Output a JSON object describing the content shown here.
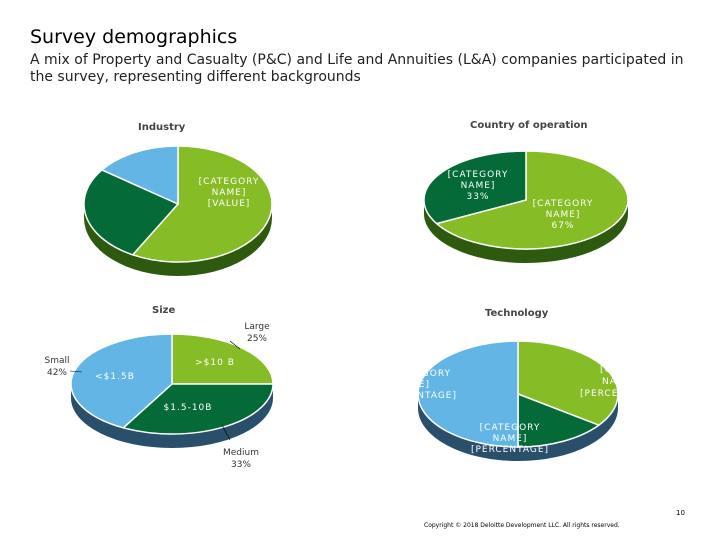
{
  "page": {
    "title": "Survey demographics",
    "subtitle": "A mix of Property and Casualty (P&C) and Life and Annuities (L&A) companies participated in the survey, representing different backgrounds",
    "page_number": "10",
    "copyright": "Copyright © 2018 Deloitte Development LLC. All rights reserved."
  },
  "chart_data": [
    {
      "type": "pie",
      "title": "Industry",
      "categories": [
        "[CATEGORY NAME] [VALUE]",
        "",
        ""
      ],
      "values": [
        58,
        27,
        15
      ],
      "colors": [
        "#86bc25",
        "#046a38",
        "#62b5e5"
      ],
      "labels": [
        "[CATEGORY",
        "NAME]",
        "[VALUE]"
      ]
    },
    {
      "type": "pie",
      "title": "Country of operation",
      "categories": [
        "[CATEGORY NAME]",
        "[CATEGORY NAME]"
      ],
      "values": [
        67,
        33
      ],
      "colors": [
        "#86bc25",
        "#046a38"
      ],
      "labels_a": [
        "[CATEGORY",
        "NAME]",
        "67%"
      ],
      "labels_b": [
        "[CATEGORY",
        "NAME]",
        "33%"
      ]
    },
    {
      "type": "pie",
      "title": "Size",
      "categories": [
        ">$10 B",
        "$1.5-10B",
        "<$1.5B"
      ],
      "values": [
        25,
        33,
        42
      ],
      "colors": [
        "#86bc25",
        "#046a38",
        "#62b5e5"
      ],
      "slice_labels": [
        ">$10 B",
        "$1.5-10B",
        "<$1.5B"
      ],
      "callouts": {
        "large": [
          "Large",
          "25%"
        ],
        "medium": [
          "Medium",
          "33%"
        ],
        "small": [
          "Small",
          "42%"
        ]
      }
    },
    {
      "type": "pie",
      "title": "Technology",
      "categories": [
        "[CATEGORY NAME] [PERCENTAGE]",
        "[CATEGORY NAME] [PERCENTAGE]",
        "[CATEGORY NAME] [PERCENTAGE]"
      ],
      "values": [
        35,
        15,
        50
      ],
      "colors": [
        "#86bc25",
        "#046a38",
        "#62b5e5"
      ],
      "labels_green": [
        "[CAT",
        "NA",
        "[PERCE"
      ],
      "labels_dark": [
        "[CATEGORY",
        "NAME]",
        "[PERCENTAGE]"
      ],
      "labels_blue": [
        "GORY",
        "E]",
        "NTAGE]"
      ]
    }
  ]
}
